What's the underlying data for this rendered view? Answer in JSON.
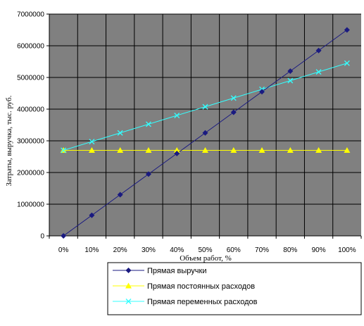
{
  "chart_data": {
    "type": "line",
    "categories": [
      "0%",
      "10%",
      "20%",
      "30%",
      "40%",
      "50%",
      "60%",
      "70%",
      "80%",
      "90%",
      "100%"
    ],
    "xlabel": "Объем работ, %",
    "ylabel": "Затраты, выручка, тыс. руб.",
    "ylim": [
      0,
      7000000
    ],
    "yticks": [
      0,
      1000000,
      2000000,
      3000000,
      4000000,
      5000000,
      6000000,
      7000000
    ],
    "ytick_labels": [
      "0",
      "1000000",
      "2000000",
      "3000000",
      "4000000",
      "5000000",
      "6000000",
      "7000000"
    ],
    "grid": true,
    "plot_background": "#808080",
    "legend_position": "bottom",
    "series": [
      {
        "name": "Прямая выручки",
        "color": "#1a1a80",
        "marker": "diamond",
        "values": [
          0,
          650000,
          1300000,
          1950000,
          2600000,
          3250000,
          3900000,
          4550000,
          5200000,
          5850000,
          6500000
        ]
      },
      {
        "name": "Прямая постоянных расходов",
        "color": "#ffff00",
        "marker": "triangle",
        "values": [
          2700000,
          2700000,
          2700000,
          2700000,
          2700000,
          2700000,
          2700000,
          2700000,
          2700000,
          2700000,
          2700000
        ]
      },
      {
        "name": "Прямая переменных расходов",
        "color": "#33ffff",
        "marker": "x",
        "values": [
          2700000,
          2975000,
          3250000,
          3525000,
          3800000,
          4075000,
          4350000,
          4625000,
          4900000,
          5175000,
          5450000
        ]
      }
    ]
  }
}
